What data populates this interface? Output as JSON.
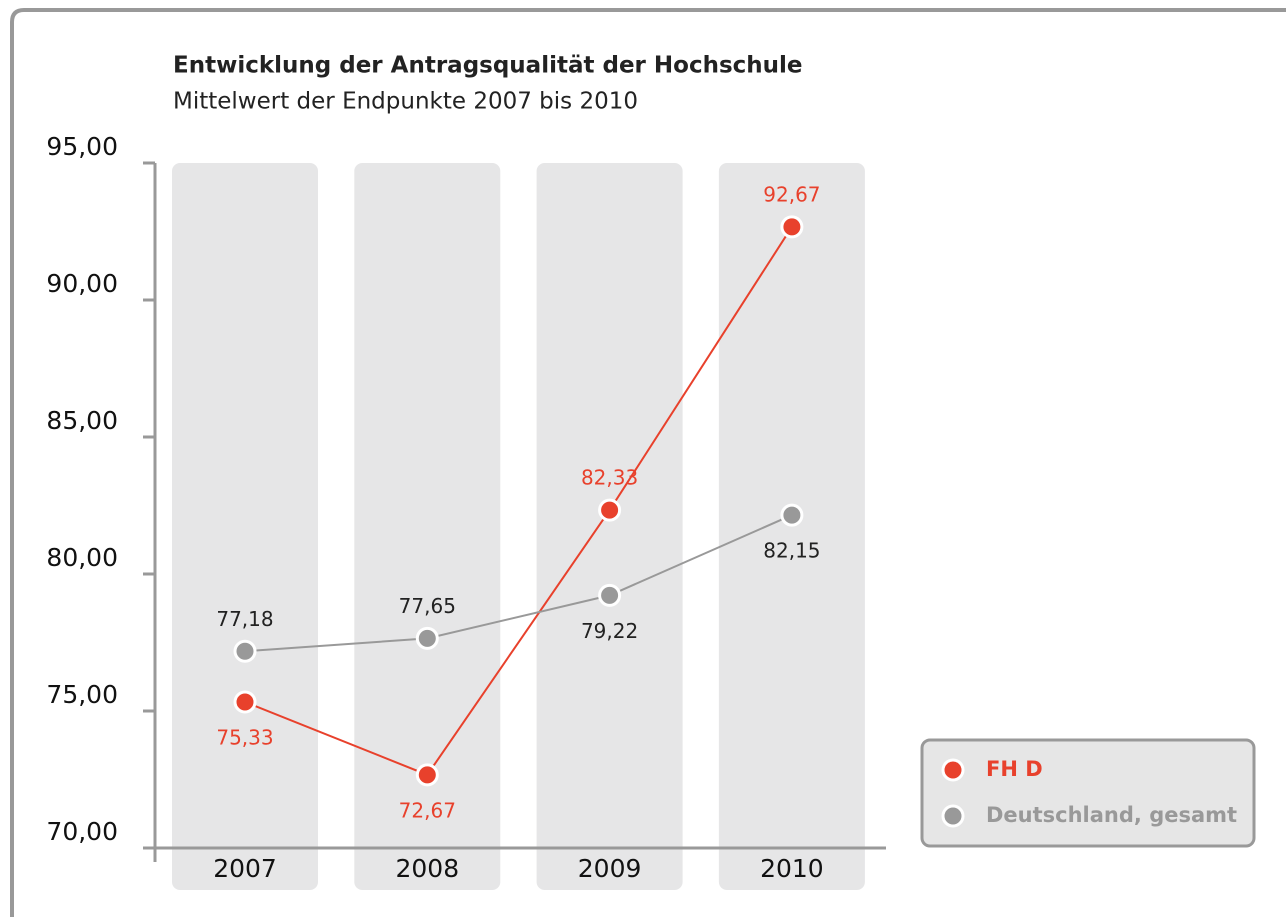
{
  "chart_data": {
    "type": "line",
    "title": "Entwicklung der Antragsqualität der Hochschule",
    "subtitle": "Mittelwert der Endpunkte 2007 bis 2010",
    "categories": [
      "2007",
      "2008",
      "2009",
      "2010"
    ],
    "series": [
      {
        "name": "FH D",
        "color": "#e8412c",
        "values": [
          75.33,
          72.67,
          82.33,
          92.67
        ],
        "value_labels": [
          "75,33",
          "72,67",
          "82,33",
          "92,67"
        ]
      },
      {
        "name": "Deutschland, gesamt",
        "color": "#999999",
        "values": [
          77.18,
          77.65,
          79.22,
          82.15
        ],
        "value_labels": [
          "77,18",
          "77,65",
          "79,22",
          "82,15"
        ]
      }
    ],
    "ylim": [
      70,
      95
    ],
    "yticks": [
      {
        "value": 70,
        "label": "70,00"
      },
      {
        "value": 75,
        "label": "75,00"
      },
      {
        "value": 80,
        "label": "80,00"
      },
      {
        "value": 85,
        "label": "85,00"
      },
      {
        "value": 90,
        "label": "90,00"
      },
      {
        "value": 95,
        "label": "95,00"
      }
    ],
    "legend": "bottom-right"
  }
}
